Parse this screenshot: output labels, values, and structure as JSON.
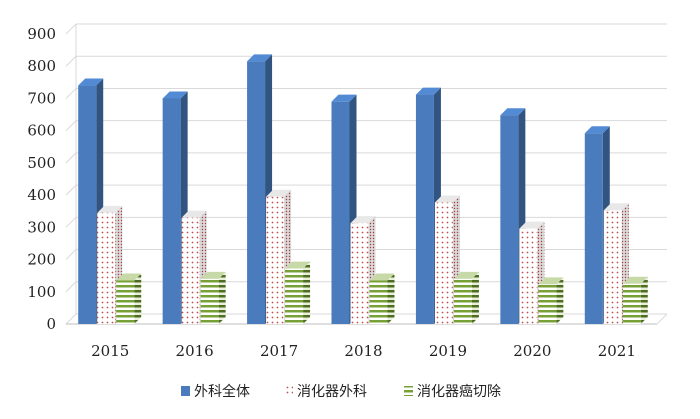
{
  "chart_data": {
    "type": "bar",
    "categories": [
      "2015",
      "2016",
      "2017",
      "2018",
      "2019",
      "2020",
      "2021"
    ],
    "series": [
      {
        "name": "外科全体",
        "values": [
          740,
          700,
          815,
          690,
          712,
          648,
          592
        ],
        "color": "#4a7bbd",
        "pattern": "solid"
      },
      {
        "name": "消化器外科",
        "values": [
          345,
          330,
          395,
          313,
          377,
          296,
          353
        ],
        "color": "#c0504d",
        "pattern": "dotted"
      },
      {
        "name": "消化器癌切除",
        "values": [
          135,
          140,
          172,
          135,
          140,
          123,
          125
        ],
        "color": "#9bbb59",
        "pattern": "horizontal-stripes"
      }
    ],
    "yticks": [
      "0",
      "100",
      "200",
      "300",
      "400",
      "500",
      "600",
      "700",
      "800",
      "900"
    ],
    "ylim": [
      0,
      900
    ],
    "grid": true,
    "legend_position": "bottom",
    "style": "3d-column"
  }
}
